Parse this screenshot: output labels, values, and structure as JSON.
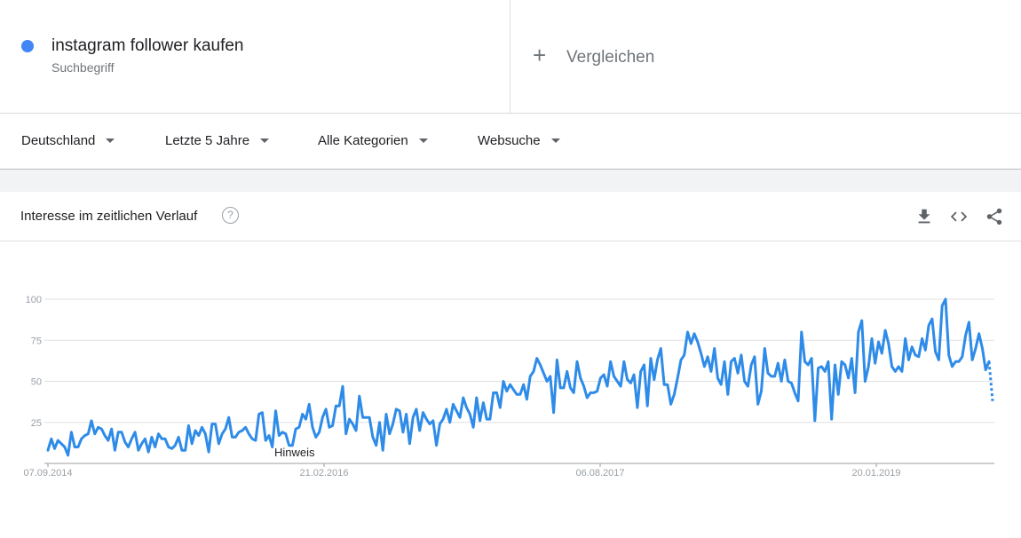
{
  "search_term": {
    "name": "instagram follower kaufen",
    "type": "Suchbegriff",
    "color": "#4285f4"
  },
  "compare": {
    "label": "Vergleichen"
  },
  "filters": {
    "region": "Deutschland",
    "time": "Letzte 5 Jahre",
    "category": "Alle Kategorien",
    "search_type": "Websuche"
  },
  "card": {
    "title": "Interesse im zeitlichen Verlauf",
    "help": "?",
    "tools": [
      "download-icon",
      "embed-code-icon",
      "share-icon"
    ]
  },
  "chart_data": {
    "type": "line",
    "title": "",
    "xlabel": "",
    "ylabel": "",
    "ylim": [
      0,
      100
    ],
    "y_ticks": [
      "25",
      "50",
      "75",
      "100"
    ],
    "x_ticks": [
      "07.09.2014",
      "21.02.2016",
      "06.08.2017",
      "20.01.2019"
    ],
    "annotation": "Hinweis",
    "grid": true,
    "series": [
      {
        "color": "#2e8be8",
        "partial_last_value": 38,
        "values": [
          8,
          15,
          9,
          14,
          12,
          10,
          5,
          19,
          10,
          10,
          15,
          17,
          18,
          26,
          18,
          22,
          21,
          17,
          14,
          21,
          8,
          19,
          19,
          13,
          10,
          15,
          19,
          8,
          12,
          15,
          7,
          16,
          10,
          18,
          15,
          15,
          10,
          9,
          11,
          16,
          8,
          8,
          23,
          12,
          20,
          17,
          22,
          18,
          7,
          24,
          24,
          12,
          18,
          21,
          28,
          16,
          16,
          19,
          20,
          22,
          18,
          15,
          14,
          30,
          31,
          14,
          17,
          10,
          32,
          17,
          19,
          18,
          11,
          11,
          21,
          22,
          30,
          27,
          36,
          22,
          16,
          19,
          28,
          33,
          22,
          23,
          35,
          35,
          47,
          18,
          27,
          24,
          20,
          41,
          28,
          28,
          28,
          16,
          11,
          25,
          8,
          30,
          18,
          24,
          33,
          32,
          19,
          30,
          12,
          28,
          33,
          20,
          31,
          27,
          24,
          26,
          11,
          24,
          27,
          33,
          25,
          36,
          32,
          28,
          40,
          34,
          30,
          22,
          40,
          26,
          37,
          27,
          27,
          43,
          43,
          34,
          50,
          44,
          48,
          45,
          42,
          42,
          48,
          39,
          53,
          56,
          64,
          60,
          55,
          50,
          53,
          31,
          63,
          46,
          46,
          56,
          46,
          43,
          62,
          52,
          47,
          40,
          43,
          43,
          44,
          52,
          54,
          47,
          62,
          53,
          50,
          47,
          62,
          51,
          49,
          54,
          34,
          56,
          60,
          35,
          64,
          51,
          63,
          70,
          48,
          48,
          36,
          42,
          52,
          63,
          66,
          80,
          73,
          79,
          74,
          67,
          59,
          65,
          56,
          70,
          52,
          48,
          62,
          42,
          62,
          64,
          55,
          66,
          50,
          47,
          60,
          65,
          36,
          44,
          70,
          55,
          53,
          53,
          61,
          50,
          63,
          50,
          49,
          43,
          38,
          80,
          62,
          60,
          64,
          26,
          58,
          59,
          56,
          62,
          27,
          60,
          42,
          62,
          60,
          52,
          64,
          43,
          80,
          87,
          50,
          59,
          76,
          61,
          74,
          67,
          81,
          73,
          59,
          56,
          59,
          56,
          76,
          63,
          71,
          66,
          65,
          76,
          69,
          84,
          88,
          68,
          63,
          96,
          100,
          66,
          59,
          62,
          62,
          65,
          78,
          86,
          63,
          70,
          79,
          70,
          57,
          62
        ]
      }
    ]
  }
}
